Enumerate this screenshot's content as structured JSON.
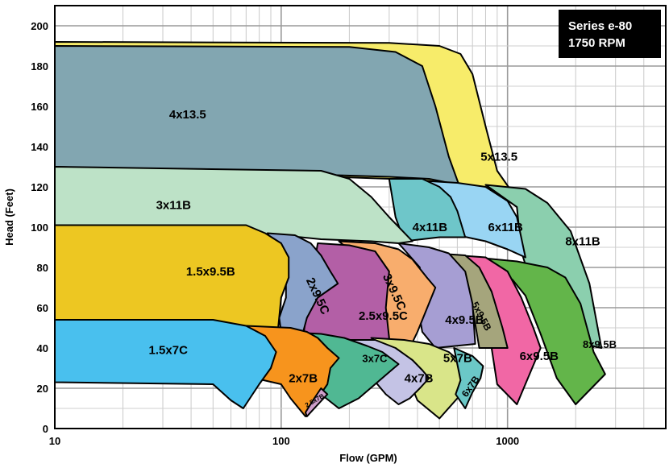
{
  "chart_data": {
    "type": "area",
    "title": "Series e-80",
    "subtitle": "1750 RPM",
    "xlabel": "Flow (GPM)",
    "ylabel": "Head (Feet)",
    "x_scale": "log",
    "xlim": [
      10,
      5000
    ],
    "ylim": [
      0,
      210
    ],
    "grid": true,
    "x_ticks": [
      "10",
      "100",
      "1000"
    ],
    "x_tick_values": [
      10,
      100,
      1000
    ],
    "y_ticks": [
      "0",
      "20",
      "40",
      "60",
      "80",
      "100",
      "120",
      "140",
      "160",
      "180",
      "200"
    ],
    "y_tick_values": [
      0,
      20,
      40,
      60,
      80,
      100,
      120,
      140,
      160,
      180,
      200
    ],
    "regions": [
      {
        "name": "5x13.5",
        "color": "#f7ec6a",
        "label_at": {
          "x": 760,
          "y": 133
        },
        "outline": [
          [
            10,
            192
          ],
          [
            300,
            191.5
          ],
          [
            500,
            190
          ],
          [
            620,
            186
          ],
          [
            700,
            176
          ],
          [
            800,
            150
          ],
          [
            900,
            128
          ],
          [
            1100,
            114
          ],
          [
            610,
            121
          ],
          [
            450,
            123
          ],
          [
            300,
            124
          ],
          [
            10,
            130
          ]
        ]
      },
      {
        "name": "4x13.5",
        "color": "#82a6b1",
        "label_at": {
          "x": 32,
          "y": 154
        },
        "outline": [
          [
            10,
            190
          ],
          [
            200,
            189.5
          ],
          [
            320,
            187
          ],
          [
            420,
            180
          ],
          [
            480,
            160
          ],
          [
            550,
            135
          ],
          [
            610,
            121
          ],
          [
            450,
            124
          ],
          [
            300,
            125
          ],
          [
            10,
            130
          ]
        ]
      },
      {
        "name": "8x11B",
        "color": "#8bcfae",
        "label_at": {
          "x": 1800,
          "y": 91
        },
        "outline": [
          [
            800,
            121
          ],
          [
            1200,
            119
          ],
          [
            1500,
            112
          ],
          [
            1900,
            98
          ],
          [
            2300,
            72
          ],
          [
            2600,
            40
          ],
          [
            2000,
            43
          ],
          [
            1500,
            54
          ],
          [
            1250,
            75
          ],
          [
            1150,
            88
          ],
          [
            1100,
            110
          ]
        ]
      },
      {
        "name": "6x11B",
        "color": "#99d5f3",
        "label_at": {
          "x": 820,
          "y": 98
        },
        "outline": [
          [
            430,
            123
          ],
          [
            600,
            122
          ],
          [
            800,
            120
          ],
          [
            1000,
            113
          ],
          [
            1100,
            105
          ],
          [
            1200,
            85
          ],
          [
            1000,
            89
          ],
          [
            800,
            93
          ],
          [
            600,
            96
          ],
          [
            500,
            95
          ],
          [
            480,
            112
          ]
        ]
      },
      {
        "name": "4x11B",
        "color": "#6ec6c9",
        "label_at": {
          "x": 380,
          "y": 98
        },
        "outline": [
          [
            300,
            124
          ],
          [
            420,
            124
          ],
          [
            500,
            120
          ],
          [
            560,
            115
          ],
          [
            600,
            108
          ],
          [
            650,
            95
          ],
          [
            500,
            95
          ],
          [
            350,
            93
          ],
          [
            320,
            105
          ]
        ]
      },
      {
        "name": "3x11B",
        "color": "#bde2c7",
        "label_at": {
          "x": 28,
          "y": 109
        },
        "outline": [
          [
            10,
            130
          ],
          [
            150,
            128
          ],
          [
            200,
            124
          ],
          [
            250,
            115
          ],
          [
            300,
            105
          ],
          [
            380,
            93
          ],
          [
            330,
            92
          ],
          [
            250,
            93
          ],
          [
            150,
            94
          ],
          [
            100,
            96
          ],
          [
            10,
            96
          ]
        ]
      },
      {
        "name": "8x9.5B",
        "color": "#63b54a",
        "label_at": {
          "x": 2150,
          "y": 40
        },
        "outline": [
          [
            720,
            85
          ],
          [
            1100,
            83
          ],
          [
            1500,
            80
          ],
          [
            1800,
            75
          ],
          [
            2100,
            62
          ],
          [
            2400,
            38
          ],
          [
            2700,
            27
          ],
          [
            2000,
            12
          ],
          [
            1650,
            25
          ],
          [
            1400,
            47
          ],
          [
            1200,
            66
          ],
          [
            1050,
            74
          ]
        ]
      },
      {
        "name": "6x9.5B",
        "color": "#f167a5",
        "label_at": {
          "x": 1130,
          "y": 34
        },
        "outline": [
          [
            600,
            86
          ],
          [
            800,
            85
          ],
          [
            1000,
            78
          ],
          [
            1150,
            65
          ],
          [
            1300,
            50
          ],
          [
            1400,
            40
          ],
          [
            1100,
            12
          ],
          [
            900,
            22
          ],
          [
            850,
            40
          ],
          [
            800,
            65
          ],
          [
            700,
            80
          ]
        ]
      },
      {
        "name": "5x9.5B",
        "color": "#a5a57c",
        "label_at": {
          "x": 745,
          "y": 55
        },
        "outline": [
          [
            480,
            87
          ],
          [
            650,
            86
          ],
          [
            750,
            80
          ],
          [
            850,
            68
          ],
          [
            950,
            50
          ],
          [
            1000,
            40
          ],
          [
            750,
            40
          ],
          [
            700,
            60
          ],
          [
            630,
            78
          ]
        ]
      },
      {
        "name": "4x9.5B",
        "color": "#a69ed3",
        "label_at": {
          "x": 530,
          "y": 52
        },
        "outline": [
          [
            330,
            92
          ],
          [
            450,
            90
          ],
          [
            550,
            87
          ],
          [
            650,
            78
          ],
          [
            700,
            62
          ],
          [
            720,
            42
          ],
          [
            480,
            40
          ],
          [
            420,
            48
          ],
          [
            400,
            62
          ],
          [
            410,
            80
          ]
        ]
      },
      {
        "name": "3x9.5C",
        "color": "#f8ad6d",
        "label_at": {
          "x": 305,
          "y": 67
        },
        "outline": [
          [
            180,
            93
          ],
          [
            260,
            92
          ],
          [
            330,
            89
          ],
          [
            380,
            84
          ],
          [
            440,
            75
          ],
          [
            480,
            70
          ],
          [
            400,
            48
          ],
          [
            370,
            40
          ],
          [
            300,
            40
          ],
          [
            280,
            60
          ],
          [
            260,
            78
          ]
        ]
      },
      {
        "name": "2.5x9.5C",
        "color": "#b35fa6",
        "label_at": {
          "x": 220,
          "y": 54
        },
        "outline": [
          [
            145,
            92
          ],
          [
            200,
            91
          ],
          [
            260,
            88
          ],
          [
            300,
            78
          ],
          [
            290,
            60
          ],
          [
            300,
            45
          ],
          [
            280,
            40
          ],
          [
            200,
            41
          ],
          [
            140,
            40
          ],
          [
            125,
            45
          ],
          [
            130,
            60
          ]
        ]
      },
      {
        "name": "2x9.5C",
        "color": "#8aa3cb",
        "label_at": {
          "x": 140,
          "y": 65
        },
        "outline": [
          [
            87,
            97
          ],
          [
            115,
            96
          ],
          [
            135,
            92
          ],
          [
            150,
            86
          ],
          [
            165,
            78
          ],
          [
            178,
            72
          ],
          [
            145,
            65
          ],
          [
            130,
            55
          ],
          [
            125,
            48
          ],
          [
            110,
            45
          ],
          [
            100,
            48
          ],
          [
            98,
            55
          ],
          [
            105,
            65
          ],
          [
            105,
            80
          ]
        ]
      },
      {
        "name": "1.5x9.5B",
        "color": "#edc722",
        "label_at": {
          "x": 38,
          "y": 76
        },
        "outline": [
          [
            10,
            101
          ],
          [
            70,
            101
          ],
          [
            85,
            97
          ],
          [
            100,
            92
          ],
          [
            108,
            85
          ],
          [
            108,
            75
          ],
          [
            100,
            65
          ],
          [
            97,
            50
          ],
          [
            50,
            49
          ],
          [
            10,
            48
          ]
        ]
      },
      {
        "name": "5x7B",
        "color": "#d9e589",
        "label_at": {
          "x": 520,
          "y": 33
        },
        "outline": [
          [
            250,
            45
          ],
          [
            350,
            44
          ],
          [
            450,
            42
          ],
          [
            550,
            38
          ],
          [
            650,
            31
          ],
          [
            720,
            22
          ],
          [
            600,
            15
          ],
          [
            500,
            5
          ],
          [
            400,
            14
          ],
          [
            380,
            20
          ],
          [
            300,
            38
          ]
        ]
      },
      {
        "name": "6x7B",
        "color": "#6bc8c7",
        "label_at": {
          "x": 705,
          "y": 20
        },
        "outline": [
          [
            580,
            40
          ],
          [
            700,
            36
          ],
          [
            780,
            31
          ],
          [
            760,
            25
          ],
          [
            700,
            18
          ],
          [
            650,
            10
          ],
          [
            590,
            17
          ],
          [
            620,
            24
          ]
        ]
      },
      {
        "name": "4x7B",
        "color": "#c4c3e5",
        "label_at": {
          "x": 350,
          "y": 23
        },
        "outline": [
          [
            190,
            44
          ],
          [
            260,
            44
          ],
          [
            320,
            40
          ],
          [
            380,
            34
          ],
          [
            420,
            29
          ],
          [
            450,
            25
          ],
          [
            410,
            20
          ],
          [
            370,
            15
          ],
          [
            330,
            12
          ],
          [
            290,
            17
          ],
          [
            240,
            28
          ]
        ]
      },
      {
        "name": "3x7C",
        "color": "#50b893",
        "label_at": {
          "x": 228,
          "y": 33
        },
        "outline": [
          [
            100,
            48
          ],
          [
            150,
            47
          ],
          [
            190,
            45
          ],
          [
            240,
            41
          ],
          [
            280,
            38
          ],
          [
            330,
            32
          ],
          [
            300,
            28
          ],
          [
            260,
            22
          ],
          [
            220,
            15
          ],
          [
            180,
            10
          ],
          [
            150,
            17
          ],
          [
            135,
            24
          ],
          [
            125,
            35
          ]
        ]
      },
      {
        "name": "2x7B",
        "color": "#f7941d",
        "label_at": {
          "x": 108,
          "y": 23
        },
        "outline": [
          [
            70,
            51
          ],
          [
            110,
            50
          ],
          [
            130,
            48
          ],
          [
            145,
            45
          ],
          [
            160,
            40
          ],
          [
            180,
            35
          ],
          [
            165,
            30
          ],
          [
            160,
            22
          ],
          [
            145,
            15
          ],
          [
            128,
            6
          ],
          [
            110,
            15
          ],
          [
            100,
            22
          ],
          [
            70,
            26
          ]
        ]
      },
      {
        "name": "2.5x7B",
        "color": "#cf9fcb",
        "label_at": {
          "x": 142,
          "y": 13
        },
        "outline": [
          [
            150,
            20
          ],
          [
            160,
            17
          ],
          [
            140,
            10
          ],
          [
            130,
            6
          ],
          [
            128,
            8
          ],
          [
            140,
            15
          ]
        ]
      },
      {
        "name": "1.5x7C",
        "color": "#49c0ee",
        "label_at": {
          "x": 26,
          "y": 37
        },
        "outline": [
          [
            10,
            54
          ],
          [
            50,
            54
          ],
          [
            70,
            51
          ],
          [
            85,
            46
          ],
          [
            95,
            38
          ],
          [
            90,
            30
          ],
          [
            80,
            22
          ],
          [
            68,
            10
          ],
          [
            60,
            14
          ],
          [
            50,
            22
          ],
          [
            10,
            23
          ]
        ]
      }
    ]
  }
}
